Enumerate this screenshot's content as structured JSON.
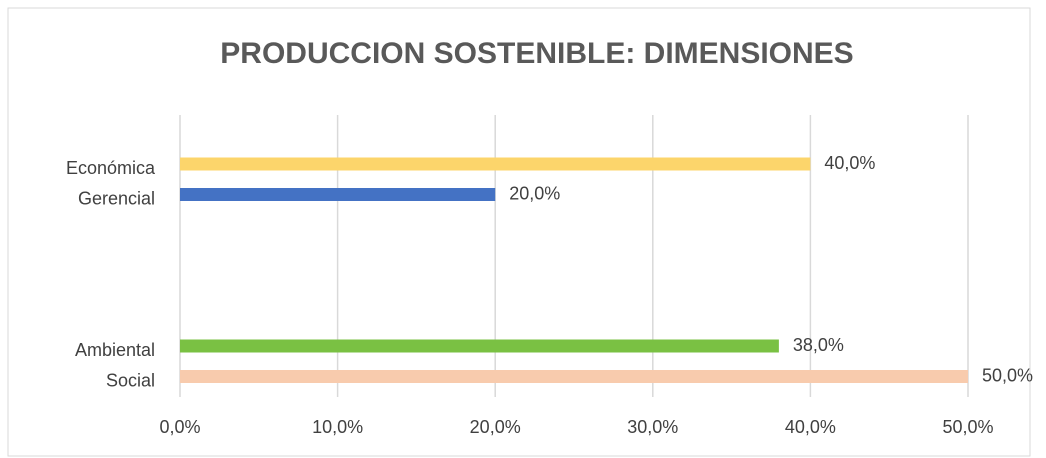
{
  "chart_data": {
    "type": "bar",
    "orientation": "horizontal",
    "title": "PRODUCCION SOSTENIBLE: DIMENSIONES",
    "categories": [
      "Económica",
      "Gerencial",
      "Ambiental",
      "Social"
    ],
    "values": [
      40,
      20,
      38,
      50
    ],
    "value_labels": [
      "40,0%",
      "20,0%",
      "38,0%",
      "50,0%"
    ],
    "colors": [
      "#fcd56b",
      "#4472c4",
      "#7ac143",
      "#f8cbad"
    ],
    "xlim": [
      0,
      50
    ],
    "xticks": [
      {
        "value": 0,
        "label": "0,0%"
      },
      {
        "value": 10,
        "label": "10,0%"
      },
      {
        "value": 20,
        "label": "20,0%"
      },
      {
        "value": 30,
        "label": "30,0%"
      },
      {
        "value": 40,
        "label": "40,0%"
      },
      {
        "value": 50,
        "label": "50,0%"
      }
    ],
    "grid": true
  }
}
